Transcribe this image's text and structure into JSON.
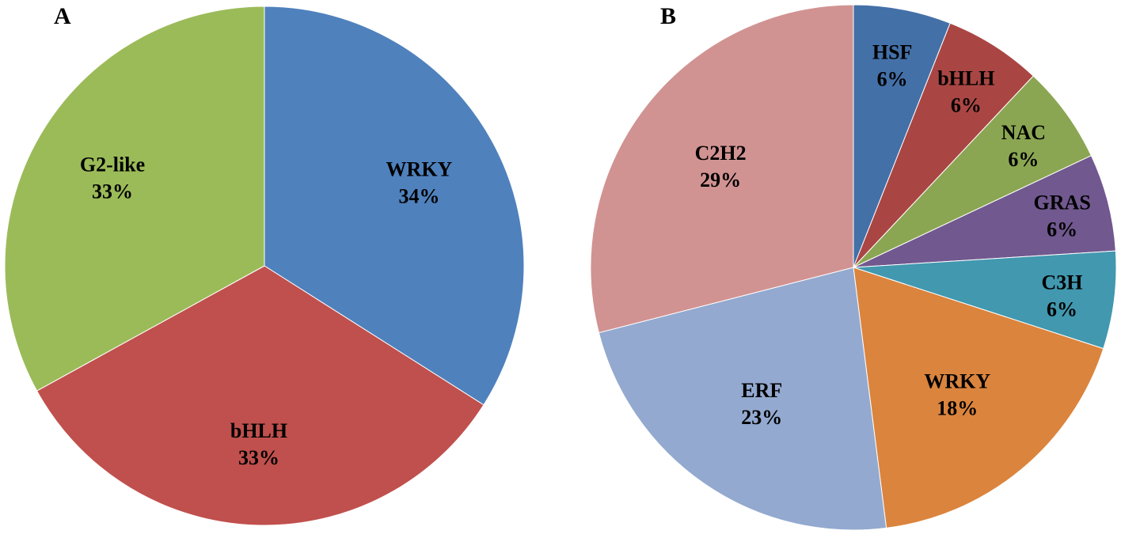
{
  "chart_data": [
    {
      "type": "pie",
      "panel_label": "A",
      "slices": [
        {
          "label": "WRKY",
          "percent_label": "34%",
          "value": 34,
          "color": "#4F81BD"
        },
        {
          "label": "bHLH",
          "percent_label": "33%",
          "value": 33,
          "color": "#C0504D"
        },
        {
          "label": "G2-like",
          "percent_label": "33%",
          "value": 33,
          "color": "#9BBB59"
        }
      ]
    },
    {
      "type": "pie",
      "panel_label": "B",
      "slices": [
        {
          "label": "HSF",
          "percent_label": "6%",
          "value": 6,
          "color": "#4470A8"
        },
        {
          "label": "bHLH",
          "percent_label": "6%",
          "value": 6,
          "color": "#A94643"
        },
        {
          "label": "NAC",
          "percent_label": "6%",
          "value": 6,
          "color": "#8BA652"
        },
        {
          "label": "GRAS",
          "percent_label": "6%",
          "value": 6,
          "color": "#71588F"
        },
        {
          "label": "C3H",
          "percent_label": "6%",
          "value": 6,
          "color": "#4198AF"
        },
        {
          "label": "WRKY",
          "percent_label": "18%",
          "value": 18,
          "color": "#DB843D"
        },
        {
          "label": "ERF",
          "percent_label": "23%",
          "value": 23,
          "color": "#93A9CF"
        },
        {
          "label": "C2H2",
          "percent_label": "29%",
          "value": 29,
          "color": "#D19392"
        }
      ]
    }
  ]
}
